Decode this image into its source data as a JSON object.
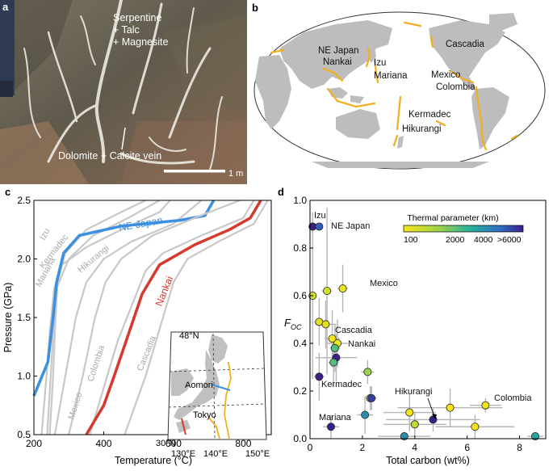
{
  "panels": {
    "a": {
      "letter": "a",
      "labels": [
        "Serpentine",
        "+ Talc",
        "+ Magnesite"
      ],
      "vein_label": "Dolomite + Calcite vein",
      "scale_label": "1 m"
    },
    "b": {
      "letter": "b",
      "regions": [
        "NE Japan",
        "Nankai",
        "Izu",
        "Mariana",
        "Cascadia",
        "Mexico",
        "Colombia",
        "Kermadec",
        "Hikurangi"
      ]
    },
    "c": {
      "letter": "c",
      "xlabel": "Temperature (°C)",
      "ylabel": "Pressure (GPa)",
      "xticks": [
        "200",
        "400",
        "600",
        "800"
      ],
      "yticks": [
        "0.5",
        "1.0",
        "1.5",
        "2.0",
        "2.5"
      ],
      "curve_labels": [
        "Izu",
        "Kermadec",
        "Mariana",
        "Hikurangi",
        "NE Japan",
        "Nankai",
        "Colombia",
        "Cascadia",
        "Mexico"
      ],
      "inset": {
        "lat_labels": [
          "48°N",
          "30°N"
        ],
        "lon_labels": [
          "130°E",
          "140°E",
          "150°E"
        ],
        "places": [
          "Aomori",
          "Tokyo"
        ]
      }
    },
    "d": {
      "letter": "d",
      "xlabel": "Total carbon (wt%)",
      "ylabel_main": "F",
      "ylabel_sub": "OC",
      "xticks": [
        "0",
        "2",
        "4",
        "6",
        "8"
      ],
      "yticks": [
        "0.0",
        "0.2",
        "0.4",
        "0.6",
        "0.8",
        "1.0"
      ],
      "legend_title": "Thermal parameter (km)",
      "legend_ticks": [
        "100",
        "2000",
        "4000",
        ">6000"
      ],
      "point_labels": [
        "Izu",
        "NE Japan",
        "Mexico",
        "Cascadia",
        "Nankai",
        "Kermadec",
        "Hikurangi",
        "Colombia",
        "Mariana"
      ]
    }
  },
  "chart_data": [
    {
      "type": "line",
      "panel": "c",
      "xlabel": "Temperature (°C)",
      "ylabel": "Pressure (GPa)",
      "xlim": [
        200,
        880
      ],
      "ylim": [
        0.5,
        2.5
      ],
      "series": [
        {
          "name": "Izu",
          "color": "#c8c8c8",
          "points": [
            [
              245,
              0.5
            ],
            [
              255,
              1.0
            ],
            [
              262,
              1.5
            ],
            [
              268,
              1.8
            ],
            [
              290,
              2.05
            ],
            [
              350,
              2.25
            ],
            [
              450,
              2.4
            ],
            [
              520,
              2.5
            ]
          ]
        },
        {
          "name": "Kermadec",
          "color": "#c8c8c8",
          "points": [
            [
              238,
              0.5
            ],
            [
              248,
              1.0
            ],
            [
              256,
              1.4
            ],
            [
              265,
              1.75
            ],
            [
              300,
              2.0
            ],
            [
              370,
              2.2
            ],
            [
              470,
              2.35
            ],
            [
              560,
              2.5
            ]
          ]
        },
        {
          "name": "Mariana",
          "color": "#c8c8c8",
          "points": [
            [
              222,
              0.5
            ],
            [
              236,
              1.0
            ],
            [
              246,
              1.4
            ],
            [
              258,
              1.75
            ],
            [
              280,
              1.95
            ],
            [
              350,
              2.1
            ],
            [
              450,
              2.25
            ],
            [
              560,
              2.4
            ],
            [
              590,
              2.5
            ]
          ]
        },
        {
          "name": "Hikurangi",
          "color": "#c8c8c8",
          "points": [
            [
              260,
              0.5
            ],
            [
              290,
              1.0
            ],
            [
              320,
              1.5
            ],
            [
              350,
              1.8
            ],
            [
              400,
              2.0
            ],
            [
              480,
              2.15
            ],
            [
              600,
              2.3
            ],
            [
              680,
              2.5
            ]
          ]
        },
        {
          "name": "NE Japan",
          "color": "#3d8fe0",
          "points": [
            [
              200,
              0.83
            ],
            [
              240,
              1.12
            ],
            [
              255,
              1.5
            ],
            [
              265,
              1.8
            ],
            [
              285,
              2.05
            ],
            [
              330,
              2.2
            ],
            [
              450,
              2.28
            ],
            [
              620,
              2.33
            ],
            [
              690,
              2.37
            ],
            [
              715,
              2.5
            ]
          ]
        },
        {
          "name": "Colombia",
          "color": "#c8c8c8",
          "points": [
            [
              300,
              0.5
            ],
            [
              340,
              1.0
            ],
            [
              375,
              1.5
            ],
            [
              405,
              1.8
            ],
            [
              450,
              2.0
            ],
            [
              540,
              2.2
            ],
            [
              660,
              2.35
            ],
            [
              790,
              2.5
            ]
          ]
        },
        {
          "name": "Cascadia",
          "color": "#c8c8c8",
          "points": [
            [
              360,
              0.5
            ],
            [
              410,
              1.0
            ],
            [
              440,
              1.3
            ],
            [
              480,
              1.6
            ],
            [
              520,
              1.9
            ],
            [
              570,
              2.05
            ],
            [
              680,
              2.2
            ],
            [
              800,
              2.35
            ],
            [
              830,
              2.5
            ]
          ]
        },
        {
          "name": "Nankai",
          "color": "#d63a2e",
          "points": [
            [
              350,
              0.5
            ],
            [
              400,
              0.75
            ],
            [
              430,
              1.0
            ],
            [
              470,
              1.35
            ],
            [
              510,
              1.7
            ],
            [
              560,
              1.95
            ],
            [
              660,
              2.12
            ],
            [
              760,
              2.25
            ],
            [
              820,
              2.35
            ],
            [
              850,
              2.5
            ]
          ]
        },
        {
          "name": "Mexico",
          "color": "#c8c8c8",
          "points": [
            [
              460,
              0.5
            ],
            [
              520,
              1.0
            ],
            [
              560,
              1.4
            ],
            [
              600,
              1.8
            ],
            [
              640,
              2.0
            ],
            [
              730,
              2.15
            ],
            [
              830,
              2.3
            ],
            [
              870,
              2.5
            ]
          ]
        }
      ]
    },
    {
      "type": "scatter",
      "panel": "d",
      "xlabel": "Total carbon (wt%)",
      "ylabel": "F_OC",
      "xlim": [
        0,
        9
      ],
      "ylim": [
        0,
        1.0
      ],
      "legend": {
        "title": "Thermal parameter (km)",
        "ticks": [
          "100",
          "2000",
          "4000",
          ">6000"
        ],
        "placement": "top-right"
      },
      "points": [
        {
          "label": "Izu",
          "x": 0.1,
          "y": 0.89,
          "tp": 6500,
          "xerr": 0.0,
          "yerr": 0.0
        },
        {
          "label": "NE Japan",
          "x": 0.35,
          "y": 0.89,
          "tp": 5500,
          "xerr": 0.0,
          "yerr": 0.0
        },
        {
          "label": "",
          "x": 0.1,
          "y": 0.6,
          "tp": 1000,
          "xerr": 0.15,
          "yerr": 0.35
        },
        {
          "label": "",
          "x": 0.65,
          "y": 0.62,
          "tp": 800,
          "xerr": 0.2,
          "yerr": 0.35
        },
        {
          "label": "Mexico",
          "x": 1.25,
          "y": 0.63,
          "tp": 300,
          "xerr": 0.2,
          "yerr": 0.1
        },
        {
          "label": "",
          "x": 0.35,
          "y": 0.49,
          "tp": 500,
          "xerr": 0.2,
          "yerr": 0.1
        },
        {
          "label": "",
          "x": 0.6,
          "y": 0.48,
          "tp": 600,
          "xerr": 0.4,
          "yerr": 0.1
        },
        {
          "label": "Cascadia",
          "x": 0.85,
          "y": 0.42,
          "tp": 200,
          "xerr": 0.3,
          "yerr": 0.12
        },
        {
          "label": "Nankai",
          "x": 1.05,
          "y": 0.4,
          "tp": 300,
          "xerr": 0.4,
          "yerr": 0.1
        },
        {
          "label": "",
          "x": 0.95,
          "y": 0.38,
          "tp": 3000,
          "xerr": 0.2,
          "yerr": 0.1
        },
        {
          "label": "",
          "x": 1.0,
          "y": 0.34,
          "tp": 6500,
          "xerr": 0.8,
          "yerr": 0.1
        },
        {
          "label": "",
          "x": 0.9,
          "y": 0.32,
          "tp": 3000,
          "xerr": 0.2,
          "yerr": 0.1
        },
        {
          "label": "Kermadec",
          "x": 0.35,
          "y": 0.26,
          "tp": 6500,
          "xerr": 0.2,
          "yerr": 0.1
        },
        {
          "label": "",
          "x": 2.2,
          "y": 0.28,
          "tp": 2000,
          "xerr": 0.25,
          "yerr": 0.05
        },
        {
          "label": "",
          "x": 2.3,
          "y": 0.17,
          "tp": 800,
          "xerr": 0.2,
          "yerr": 0.05
        },
        {
          "label": "",
          "x": 2.35,
          "y": 0.17,
          "tp": 6000,
          "xerr": 0.2,
          "yerr": 0.05
        },
        {
          "label": "Colombia",
          "x": 6.7,
          "y": 0.14,
          "tp": 300,
          "xerr": 0.6,
          "yerr": 0.03
        },
        {
          "label": "",
          "x": 5.35,
          "y": 0.13,
          "tp": 100,
          "xerr": 2.0,
          "yerr": 0.08
        },
        {
          "label": "",
          "x": 3.8,
          "y": 0.11,
          "tp": 100,
          "xerr": 1.0,
          "yerr": 0.08
        },
        {
          "label": "Hikurangi",
          "x": 4.7,
          "y": 0.08,
          "tp": 6500,
          "xerr": 1.8,
          "yerr": 0.05
        },
        {
          "label": "",
          "x": 2.1,
          "y": 0.1,
          "tp": 4500,
          "xerr": 0.3,
          "yerr": 0.08
        },
        {
          "label": "",
          "x": 4.0,
          "y": 0.06,
          "tp": 1200,
          "xerr": 1.2,
          "yerr": 0.05
        },
        {
          "label": "",
          "x": 6.3,
          "y": 0.05,
          "tp": 200,
          "xerr": 1.5,
          "yerr": 0.05
        },
        {
          "label": "Mariana",
          "x": 0.8,
          "y": 0.05,
          "tp": 6500,
          "xerr": 0.3,
          "yerr": 0.05
        },
        {
          "label": "",
          "x": 3.6,
          "y": 0.01,
          "tp": 4500,
          "xerr": 1.0,
          "yerr": 0.01
        },
        {
          "label": "",
          "x": 8.6,
          "y": 0.01,
          "tp": 4000,
          "xerr": 0.3,
          "yerr": 0.01
        }
      ]
    }
  ]
}
